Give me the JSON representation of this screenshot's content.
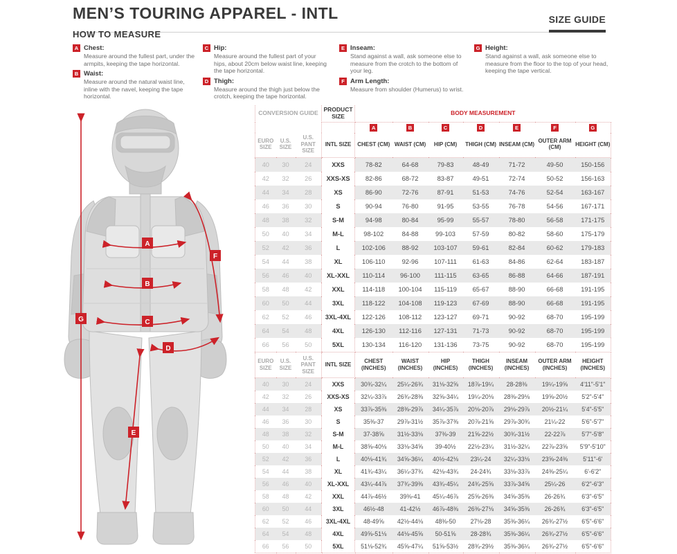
{
  "header": {
    "title": "MEN’S TOURING APPAREL - INTL",
    "size_guide_label": "SIZE GUIDE"
  },
  "how_to_measure": {
    "title": "HOW TO MEASURE",
    "items": [
      {
        "letter": "A",
        "label": "Chest:",
        "text": "Measure around the fullest part, under the armpits, keeping the tape horizontal."
      },
      {
        "letter": "B",
        "label": "Waist:",
        "text": "Measure around the natural waist line, inline with the navel, keeping the tape horizontal."
      },
      {
        "letter": "C",
        "label": "Hip:",
        "text": "Measure around the fullest part of your hips, about 20cm below waist line, keeping the tape horizontal."
      },
      {
        "letter": "D",
        "label": "Thigh:",
        "text": "Measure around the thigh just below the crotch, keeping the tape horizontal."
      },
      {
        "letter": "E",
        "label": "Inseam:",
        "text": "Stand against a wall, ask someone else to measure from the crotch to the bottom of your leg."
      },
      {
        "letter": "F",
        "label": "Arm Length:",
        "text": "Measure from shoulder (Humerus) to wrist."
      },
      {
        "letter": "G",
        "label": "Height:",
        "text": "Stand against a wall, ask someone else to measure from the floor to the top of your head, keeping the tape vertical."
      }
    ]
  },
  "figure": {
    "badges": [
      "A",
      "B",
      "C",
      "D",
      "E",
      "F",
      "G"
    ]
  },
  "tables": {
    "group_headers": {
      "conversion": "CONVERSION GUIDE",
      "product": "PRODUCT SIZE",
      "body": "BODY MEASUREMENT"
    },
    "letter_badges": [
      "A",
      "B",
      "C",
      "D",
      "E",
      "F",
      "G"
    ],
    "cm": {
      "columns": [
        "EURO SIZE",
        "U.S. SIZE",
        "U.S. PANT SIZE",
        "INTL SIZE",
        "CHEST (CM)",
        "WAIST (CM)",
        "HIP (CM)",
        "THIGH (CM)",
        "INSEAM (CM)",
        "OUTER ARM (CM)",
        "HEIGHT (CM)"
      ],
      "rows": [
        [
          "40",
          "30",
          "24",
          "XXS",
          "78-82",
          "64-68",
          "79-83",
          "48-49",
          "71-72",
          "49-50",
          "150-156"
        ],
        [
          "42",
          "32",
          "26",
          "XXS-XS",
          "82-86",
          "68-72",
          "83-87",
          "49-51",
          "72-74",
          "50-52",
          "156-163"
        ],
        [
          "44",
          "34",
          "28",
          "XS",
          "86-90",
          "72-76",
          "87-91",
          "51-53",
          "74-76",
          "52-54",
          "163-167"
        ],
        [
          "46",
          "36",
          "30",
          "S",
          "90-94",
          "76-80",
          "91-95",
          "53-55",
          "76-78",
          "54-56",
          "167-171"
        ],
        [
          "48",
          "38",
          "32",
          "S-M",
          "94-98",
          "80-84",
          "95-99",
          "55-57",
          "78-80",
          "56-58",
          "171-175"
        ],
        [
          "50",
          "40",
          "34",
          "M-L",
          "98-102",
          "84-88",
          "99-103",
          "57-59",
          "80-82",
          "58-60",
          "175-179"
        ],
        [
          "52",
          "42",
          "36",
          "L",
          "102-106",
          "88-92",
          "103-107",
          "59-61",
          "82-84",
          "60-62",
          "179-183"
        ],
        [
          "54",
          "44",
          "38",
          "XL",
          "106-110",
          "92-96",
          "107-111",
          "61-63",
          "84-86",
          "62-64",
          "183-187"
        ],
        [
          "56",
          "46",
          "40",
          "XL-XXL",
          "110-114",
          "96-100",
          "111-115",
          "63-65",
          "86-88",
          "64-66",
          "187-191"
        ],
        [
          "58",
          "48",
          "42",
          "XXL",
          "114-118",
          "100-104",
          "115-119",
          "65-67",
          "88-90",
          "66-68",
          "191-195"
        ],
        [
          "60",
          "50",
          "44",
          "3XL",
          "118-122",
          "104-108",
          "119-123",
          "67-69",
          "88-90",
          "66-68",
          "191-195"
        ],
        [
          "62",
          "52",
          "46",
          "3XL-4XL",
          "122-126",
          "108-112",
          "123-127",
          "69-71",
          "90-92",
          "68-70",
          "195-199"
        ],
        [
          "64",
          "54",
          "48",
          "4XL",
          "126-130",
          "112-116",
          "127-131",
          "71-73",
          "90-92",
          "68-70",
          "195-199"
        ],
        [
          "66",
          "56",
          "50",
          "5XL",
          "130-134",
          "116-120",
          "131-136",
          "73-75",
          "90-92",
          "68-70",
          "195-199"
        ]
      ]
    },
    "inches": {
      "columns": [
        "EURO SIZE",
        "U.S. SIZE",
        "U.S. PANT SIZE",
        "INTL SIZE",
        "CHEST (INCHES)",
        "WAIST (INCHES)",
        "HIP (INCHES)",
        "THIGH (INCHES)",
        "INSEAM (INCHES)",
        "OUTER ARM (INCHES)",
        "HEIGHT (INCHES)"
      ],
      "rows": [
        [
          "40",
          "30",
          "24",
          "XXS",
          "30¾-32¼",
          "25¼-26¾",
          "31⅛-32⅝",
          "18⅞-19¼",
          "28-28⅜",
          "19¼-19⅝",
          "4'11\"-5'1\""
        ],
        [
          "42",
          "32",
          "26",
          "XXS-XS",
          "32¼-33⅞",
          "26¾-28⅜",
          "32⅝-34¼",
          "19¼-20⅛",
          "28⅜-29⅛",
          "19⅝-20½",
          "5'2\"-5'4\""
        ],
        [
          "44",
          "34",
          "28",
          "XS",
          "33⅞-35⅜",
          "28⅜-29⅞",
          "34¼-35⅞",
          "20⅛-20⅞",
          "29⅛-29⅞",
          "20½-21¼",
          "5'4\"-5'5\""
        ],
        [
          "46",
          "36",
          "30",
          "S",
          "35⅜-37",
          "29⅞-31½",
          "35⅞-37⅜",
          "20⅞-21⅝",
          "29⅞-30¾",
          "21¼-22",
          "5'6\"-5'7\""
        ],
        [
          "48",
          "38",
          "32",
          "S-M",
          "37-38⅝",
          "31½-33⅛",
          "37⅜-39",
          "21⅝-22½",
          "30¾-31½",
          "22-22⅞",
          "5'7\"-5'8\""
        ],
        [
          "50",
          "40",
          "34",
          "M-L",
          "38⅝-40⅛",
          "33⅛-34⅝",
          "39-40½",
          "22½-23¼",
          "31½-32¼",
          "22⅞-23⅝",
          "5'9\"-5'10\""
        ],
        [
          "52",
          "42",
          "36",
          "L",
          "40⅛-41¾",
          "34⅝-36¼",
          "40½-42⅛",
          "23¼-24",
          "32¼-33⅛",
          "23⅝-24⅜",
          "5'11\"-6'"
        ],
        [
          "54",
          "44",
          "38",
          "XL",
          "41¾-43¼",
          "36¼-37¾",
          "42⅛-43¾",
          "24-24¾",
          "33⅛-33⅞",
          "24⅜-25¼",
          "6'-6'2\""
        ],
        [
          "56",
          "46",
          "40",
          "XL-XXL",
          "43¼-44⅞",
          "37¾-39⅜",
          "43¾-45¼",
          "24¾-25⅝",
          "33⅞-34⅝",
          "25¼-26",
          "6'2\"-6'3\""
        ],
        [
          "58",
          "48",
          "42",
          "XXL",
          "44⅞-46½",
          "39⅜-41",
          "45¼-46⅞",
          "25⅝-26⅜",
          "34⅝-35⅜",
          "26-26¾",
          "6'3\"-6'5\""
        ],
        [
          "60",
          "50",
          "44",
          "3XL",
          "46½-48",
          "41-42½",
          "46⅞-48⅜",
          "26⅜-27⅛",
          "34⅝-35⅜",
          "26-26¾",
          "6'3\"-6'5\""
        ],
        [
          "62",
          "52",
          "46",
          "3XL-4XL",
          "48-49⅝",
          "42½-44⅛",
          "48⅜-50",
          "27⅛-28",
          "35⅜-36¼",
          "26¾-27½",
          "6'5\"-6'6\""
        ],
        [
          "64",
          "54",
          "48",
          "4XL",
          "49⅝-51⅛",
          "44⅛-45⅝",
          "50-51⅝",
          "28-28¾",
          "35⅜-36¼",
          "26¾-27½",
          "6'5\"-6'6\""
        ],
        [
          "66",
          "56",
          "50",
          "5XL",
          "51⅛-52¾",
          "45⅝-47¼",
          "51⅝-53½",
          "28¾-29½",
          "35⅜-36¼",
          "26¾-27½",
          "6'5\"-6'6\""
        ]
      ]
    }
  },
  "colors": {
    "accent_red": "#cc2229",
    "row_stripe": "#e9e9e9",
    "muted_gray": "#b5b5b5"
  }
}
